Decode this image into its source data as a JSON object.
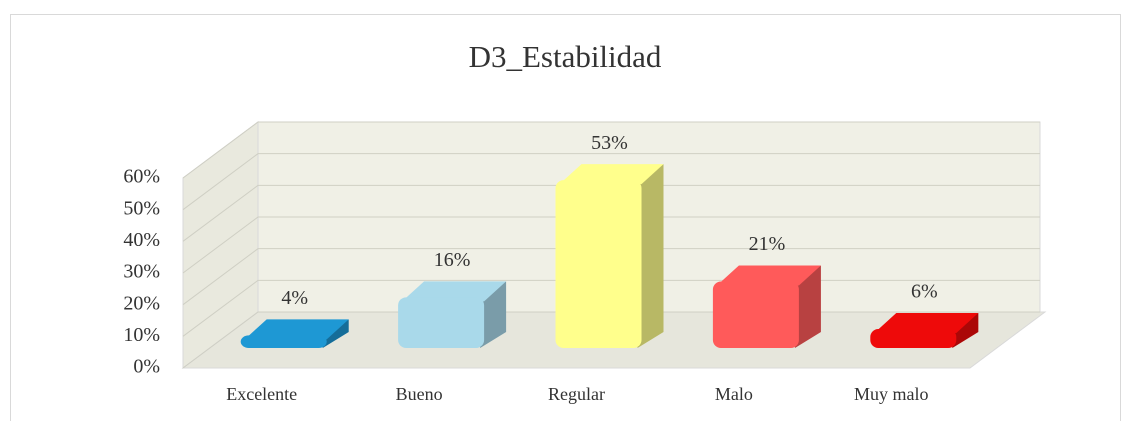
{
  "chart_data": {
    "type": "bar3d",
    "title": "D3_Estabilidad",
    "categories": [
      "Excelente",
      "Bueno",
      "Regular",
      "Malo",
      "Muy malo"
    ],
    "values": [
      4,
      16,
      53,
      21,
      6
    ],
    "value_labels": [
      "4%",
      "16%",
      "53%",
      "21%",
      "6%"
    ],
    "colors": [
      "#1e98d4",
      "#a9d9ea",
      "#ffff8c",
      "#ff5a5a",
      "#ee0a0a"
    ],
    "ylim": [
      0,
      60
    ],
    "yticks": [
      {
        "value": 0,
        "label": "0%"
      },
      {
        "value": 10,
        "label": "10%"
      },
      {
        "value": 20,
        "label": "20%"
      },
      {
        "value": 30,
        "label": "30%"
      },
      {
        "value": 40,
        "label": "40%"
      },
      {
        "value": 50,
        "label": "50%"
      },
      {
        "value": 60,
        "label": "60%"
      }
    ],
    "grid": true
  }
}
